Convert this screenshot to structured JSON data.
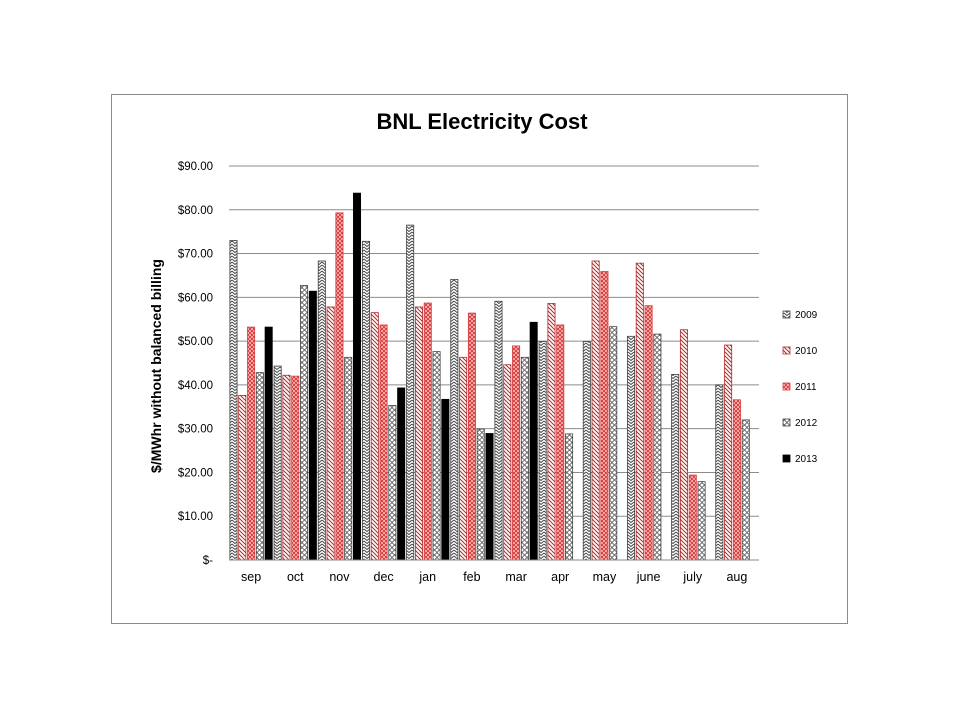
{
  "chart_data": {
    "type": "bar",
    "title": "BNL Electricity Cost",
    "xlabel": "",
    "ylabel": "$/MWhr without balanced billing",
    "ylim": [
      0,
      90
    ],
    "y_ticks": [
      {
        "value": 0,
        "label": "$-"
      },
      {
        "value": 10,
        "label": "$10.00"
      },
      {
        "value": 20,
        "label": "$20.00"
      },
      {
        "value": 30,
        "label": "$30.00"
      },
      {
        "value": 40,
        "label": "$40.00"
      },
      {
        "value": 50,
        "label": "$50.00"
      },
      {
        "value": 60,
        "label": "$60.00"
      },
      {
        "value": 70,
        "label": "$70.00"
      },
      {
        "value": 80,
        "label": "$80.00"
      },
      {
        "value": 90,
        "label": "$90.00"
      }
    ],
    "grid": true,
    "legend_position": "right",
    "categories": [
      "sep",
      "oct",
      "nov",
      "dec",
      "jan",
      "feb",
      "mar",
      "apr",
      "may",
      "june",
      "july",
      "aug"
    ],
    "series": [
      {
        "name": "2009",
        "pattern": "zigzag",
        "color": "#444444",
        "values": [
          73,
          44.3,
          68.3,
          72.8,
          76.5,
          64.1,
          59.1,
          49.9,
          49.9,
          51.1,
          42.4,
          40
        ]
      },
      {
        "name": "2010",
        "pattern": "diagonal",
        "color": "#b22a2a",
        "values": [
          37.6,
          42.2,
          57.8,
          56.5,
          57.8,
          46.3,
          44.6,
          58.6,
          68.3,
          67.8,
          52.6,
          49.1
        ]
      },
      {
        "name": "2011",
        "pattern": "crosshatch",
        "color": "#dc3c3c",
        "values": [
          53.2,
          42,
          79.3,
          53.7,
          58.7,
          56.4,
          48.9,
          53.7,
          65.9,
          58.1,
          19.4,
          36.6
        ]
      },
      {
        "name": "2012",
        "pattern": "diamond",
        "color": "#444444",
        "values": [
          42.8,
          62.7,
          46.3,
          35.3,
          47.6,
          29.9,
          46.3,
          28.8,
          53.3,
          51.6,
          17.9,
          32
        ]
      },
      {
        "name": "2013",
        "pattern": "solid",
        "color": "#000000",
        "values": [
          53.2,
          61.4,
          83.8,
          39.3,
          36.7,
          28.9,
          54.3,
          null,
          null,
          null,
          null,
          null
        ]
      }
    ]
  }
}
